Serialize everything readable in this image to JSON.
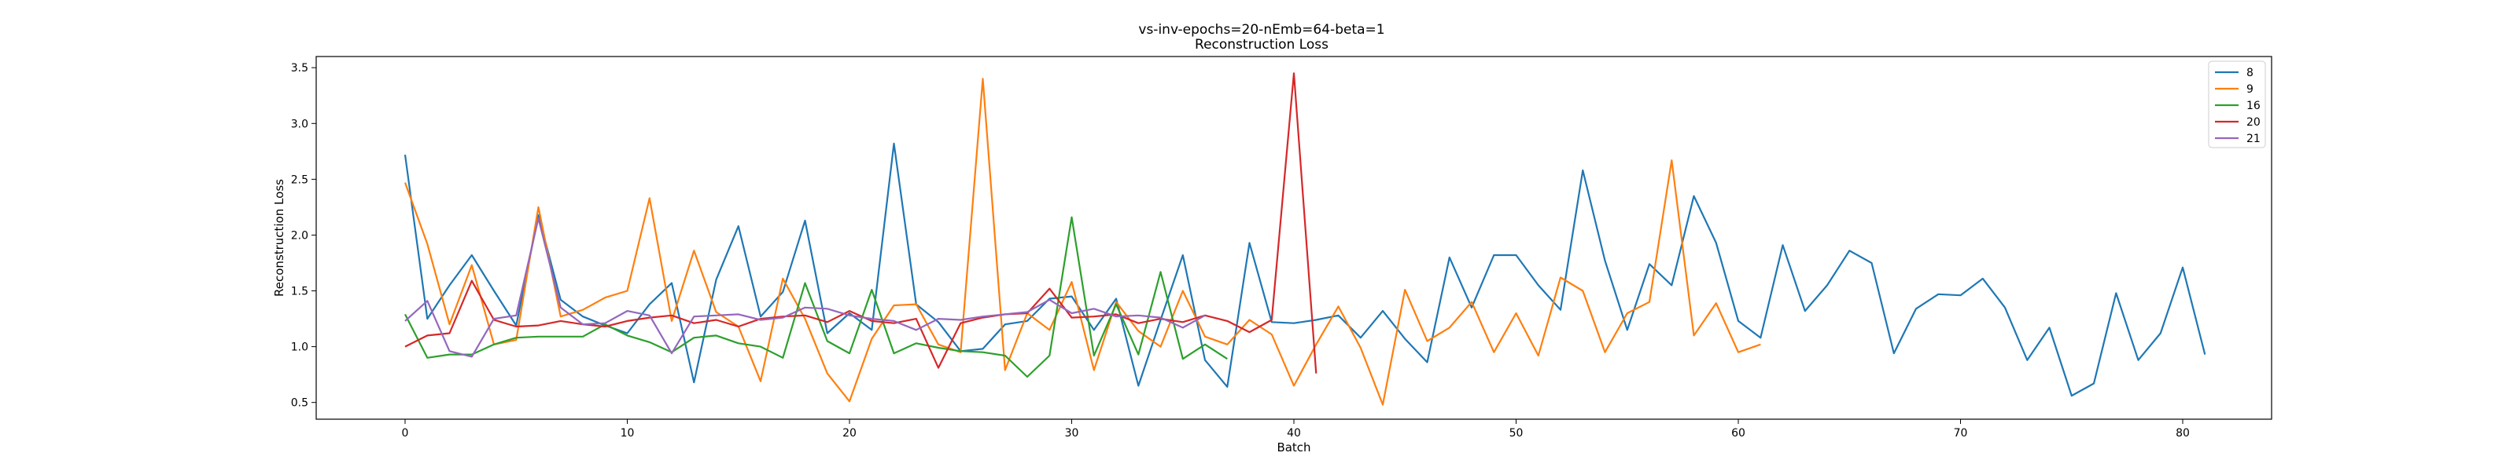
{
  "chart_data": {
    "type": "line",
    "title": "vs-inv-epochs=20-nEmb=64-beta=1",
    "subtitle": "Reconstruction Loss",
    "xlabel": "Batch",
    "ylabel": "Reconstruction Loss",
    "xlim": [
      -4,
      84
    ],
    "ylim": [
      0.35,
      3.6
    ],
    "xticks": [
      0,
      10,
      20,
      30,
      40,
      50,
      60,
      70,
      80
    ],
    "yticks": [
      0.5,
      1.0,
      1.5,
      2.0,
      2.5,
      3.0,
      3.5
    ],
    "xtick_labels": [
      "0",
      "10",
      "20",
      "30",
      "40",
      "50",
      "60",
      "70",
      "80"
    ],
    "ytick_labels": [
      "0.5",
      "1.0",
      "1.5",
      "2.0",
      "2.5",
      "3.0",
      "3.5"
    ],
    "grid": false,
    "legend_position": "top-right",
    "series": [
      {
        "name": "8",
        "color": "#1f77b4",
        "values": [
          2.72,
          1.25,
          1.55,
          1.82,
          1.5,
          1.19,
          2.18,
          1.42,
          1.27,
          1.19,
          1.12,
          1.38,
          1.57,
          0.68,
          1.6,
          2.08,
          1.27,
          1.49,
          2.13,
          1.12,
          1.3,
          1.15,
          2.82,
          1.38,
          1.22,
          0.96,
          0.98,
          1.2,
          1.23,
          1.43,
          1.45,
          1.15,
          1.43,
          0.65,
          1.24,
          1.82,
          0.88,
          0.64,
          1.93,
          1.22,
          1.21,
          1.24,
          1.28,
          1.08,
          1.32,
          1.07,
          0.86,
          1.8,
          1.35,
          1.82,
          1.82,
          1.55,
          1.33,
          2.58,
          1.77,
          1.15,
          1.74,
          1.55,
          2.35,
          1.93,
          1.23,
          1.08,
          1.91,
          1.32,
          1.55,
          1.86,
          1.75,
          0.94,
          1.34,
          1.47,
          1.46,
          1.61,
          1.35,
          0.88,
          1.17,
          0.56,
          0.67,
          1.48,
          0.88,
          1.12,
          1.71,
          0.93
        ]
      },
      {
        "name": "9",
        "color": "#ff7f0e",
        "values": [
          2.47,
          1.92,
          1.2,
          1.73,
          1.02,
          1.06,
          2.25,
          1.27,
          1.33,
          1.44,
          1.5,
          2.33,
          1.23,
          1.86,
          1.31,
          1.18,
          0.69,
          1.61,
          1.25,
          0.76,
          0.51,
          1.07,
          1.37,
          1.38,
          1.02,
          0.95,
          3.4,
          0.79,
          1.3,
          1.15,
          1.58,
          0.79,
          1.4,
          1.14,
          1.0,
          1.5,
          1.09,
          1.02,
          1.24,
          1.11,
          0.65,
          1.02,
          1.36,
          0.99,
          0.48,
          1.51,
          1.05,
          1.17,
          1.4,
          0.95,
          1.3,
          0.92,
          1.62,
          1.5,
          0.95,
          1.3,
          1.4,
          2.67,
          1.1,
          1.39,
          0.95,
          1.02
        ]
      },
      {
        "name": "16",
        "color": "#2ca02c",
        "values": [
          1.29,
          0.9,
          0.93,
          0.93,
          1.02,
          1.08,
          1.09,
          1.09,
          1.09,
          1.2,
          1.1,
          1.04,
          0.95,
          1.08,
          1.1,
          1.03,
          1.0,
          0.9,
          1.57,
          1.05,
          0.94,
          1.51,
          0.94,
          1.03,
          0.99,
          0.96,
          0.95,
          0.92,
          0.73,
          0.92,
          2.16,
          0.92,
          1.38,
          0.93,
          1.67,
          0.89,
          1.02,
          0.89
        ]
      },
      {
        "name": "20",
        "color": "#d62728",
        "values": [
          1.0,
          1.1,
          1.12,
          1.59,
          1.24,
          1.18,
          1.19,
          1.23,
          1.2,
          1.18,
          1.23,
          1.26,
          1.28,
          1.21,
          1.24,
          1.18,
          1.25,
          1.27,
          1.28,
          1.22,
          1.32,
          1.23,
          1.21,
          1.25,
          0.81,
          1.21,
          1.26,
          1.29,
          1.3,
          1.52,
          1.26,
          1.27,
          1.29,
          1.21,
          1.25,
          1.22,
          1.28,
          1.23,
          1.13,
          1.24,
          3.45,
          0.76
        ]
      },
      {
        "name": "21",
        "color": "#9467bd",
        "values": [
          1.23,
          1.41,
          0.96,
          0.91,
          1.25,
          1.28,
          2.15,
          1.35,
          1.2,
          1.21,
          1.32,
          1.28,
          0.94,
          1.27,
          1.28,
          1.29,
          1.24,
          1.26,
          1.35,
          1.34,
          1.28,
          1.25,
          1.23,
          1.15,
          1.25,
          1.24,
          1.27,
          1.29,
          1.31,
          1.42,
          1.3,
          1.34,
          1.27,
          1.28,
          1.26,
          1.17,
          1.28
        ]
      }
    ]
  }
}
